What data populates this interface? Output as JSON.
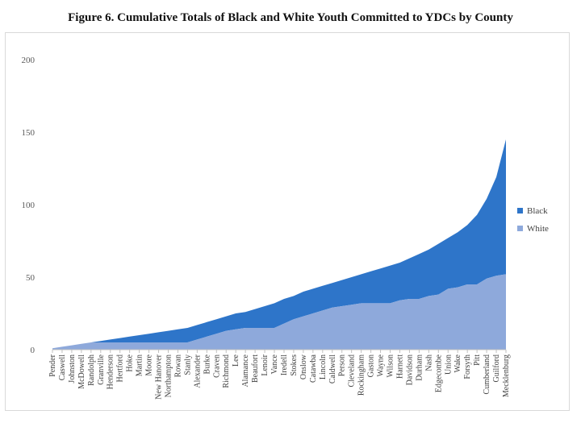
{
  "chart_data": {
    "type": "area",
    "stacked": true,
    "title": "Figure 6. Cumulative Totals of Black and White Youth Committed to YDCs by County",
    "xlabel": "",
    "ylabel": "",
    "ylim": [
      0,
      200
    ],
    "yticks": [
      0,
      50,
      100,
      150,
      200
    ],
    "grid": false,
    "legend_position": "right",
    "categories": [
      "Pender",
      "Caswell",
      "Johnston",
      "McDowell",
      "Randolph",
      "Granville",
      "Henderson",
      "Hertford",
      "Hoke",
      "Martin",
      "Moore",
      "New Hanover",
      "Northampton",
      "Rowan",
      "Stanly",
      "Alexander",
      "Burke",
      "Craven",
      "Richmond",
      "Lee",
      "Alamance",
      "Beaufort",
      "Lenoir",
      "Vance",
      "Iredell",
      "Stokes",
      "Onslow",
      "Catawba",
      "Lincoln",
      "Caldwell",
      "Person",
      "Cleveland",
      "Rockingham",
      "Gaston",
      "Wayne",
      "Wilson",
      "Harnett",
      "Davidson",
      "Durham",
      "Nash",
      "Edgecombe",
      "Union",
      "Wake",
      "Forsyth",
      "Pitt",
      "Cumberland",
      "Guilford",
      "Mecklenburg"
    ],
    "series": [
      {
        "name": "White",
        "color": "#8ea9db",
        "values": [
          1,
          2,
          3,
          4,
          5,
          5,
          5,
          5,
          5,
          5,
          5,
          5,
          5,
          5,
          5,
          7,
          9,
          11,
          13,
          14,
          15,
          15,
          15,
          15,
          18,
          21,
          23,
          25,
          27,
          29,
          30,
          31,
          32,
          32,
          32,
          32,
          34,
          35,
          35,
          37,
          38,
          42,
          43,
          45,
          45,
          49,
          51,
          52
        ]
      },
      {
        "name": "Black",
        "color": "#2e75c9",
        "values": [
          0,
          0,
          0,
          0,
          0,
          1,
          2,
          3,
          4,
          5,
          6,
          7,
          8,
          9,
          10,
          10,
          10,
          10,
          10,
          11,
          11,
          13,
          15,
          17,
          17,
          16,
          17,
          17,
          17,
          17,
          18,
          19,
          20,
          22,
          24,
          26,
          26,
          28,
          31,
          32,
          35,
          35,
          38,
          41,
          48,
          55,
          68,
          93
        ]
      }
    ]
  }
}
